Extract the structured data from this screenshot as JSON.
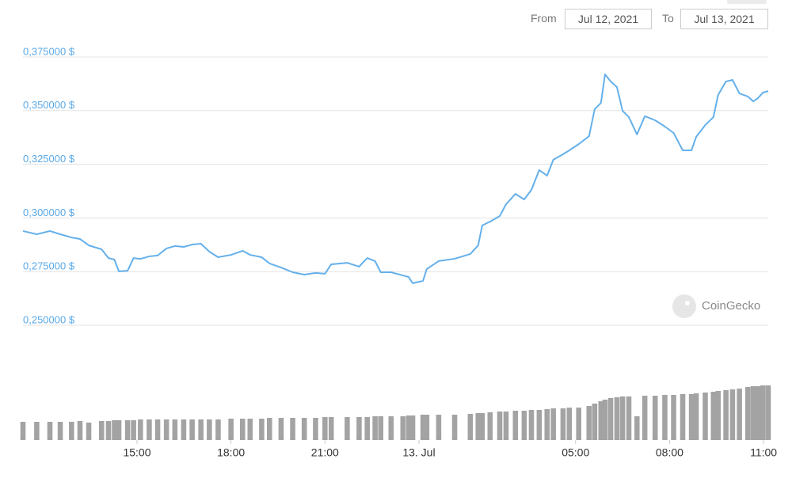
{
  "controls": {
    "from_label": "From",
    "from_value": "Jul 12, 2021",
    "to_label": "To",
    "to_value": "Jul 13, 2021"
  },
  "watermark": "CoinGecko",
  "chart_data": {
    "type": "line",
    "x": [
      11.36,
      11.8,
      12.22,
      12.55,
      12.91,
      13.18,
      13.46,
      13.87,
      14.09,
      14.28,
      14.42,
      14.7,
      14.89,
      15.11,
      15.39,
      15.66,
      15.94,
      16.21,
      16.49,
      16.76,
      17.04,
      17.31,
      17.59,
      18.0,
      18.37,
      18.61,
      18.98,
      19.23,
      19.6,
      19.97,
      20.34,
      20.7,
      21.0,
      21.2,
      21.71,
      22.09,
      22.35,
      22.6,
      22.78,
      23.11,
      23.49,
      23.67,
      23.8,
      24.13,
      24.25,
      24.63,
      25.14,
      25.64,
      25.89,
      26.02,
      26.27,
      26.58,
      26.78,
      27.08,
      27.36,
      27.59,
      27.84,
      28.09,
      28.29,
      28.6,
      28.8,
      29.1,
      29.43,
      29.61,
      29.81,
      29.94,
      30.12,
      30.32,
      30.5,
      30.7,
      30.96,
      31.21,
      31.54,
      31.85,
      32.13,
      32.42,
      32.7,
      32.85,
      33.14,
      33.4,
      33.55,
      33.8,
      34.01,
      34.23,
      34.5,
      34.67,
      34.82,
      34.98,
      35.15
    ],
    "values": [
      0.2939,
      0.2924,
      0.2939,
      0.2924,
      0.2909,
      0.2902,
      0.2872,
      0.2854,
      0.2813,
      0.2806,
      0.2751,
      0.2754,
      0.2813,
      0.2809,
      0.2821,
      0.2825,
      0.2858,
      0.2869,
      0.2865,
      0.2876,
      0.288,
      0.2843,
      0.2817,
      0.2828,
      0.2847,
      0.2828,
      0.2817,
      0.2788,
      0.2769,
      0.2747,
      0.2736,
      0.2744,
      0.274,
      0.2784,
      0.2791,
      0.2773,
      0.2813,
      0.2799,
      0.2747,
      0.2747,
      0.2732,
      0.2725,
      0.2696,
      0.2707,
      0.2762,
      0.2799,
      0.281,
      0.2832,
      0.2872,
      0.2965,
      0.2983,
      0.3009,
      0.3064,
      0.3112,
      0.3086,
      0.3131,
      0.3223,
      0.3197,
      0.3271,
      0.3297,
      0.3315,
      0.3344,
      0.3381,
      0.3507,
      0.3536,
      0.3669,
      0.3636,
      0.361,
      0.3499,
      0.347,
      0.3389,
      0.3474,
      0.3455,
      0.3426,
      0.3396,
      0.3315,
      0.3315,
      0.3378,
      0.3433,
      0.347,
      0.3573,
      0.3636,
      0.3643,
      0.358,
      0.3566,
      0.3543,
      0.3558,
      0.3584,
      0.3591
    ],
    "color": "#64b0eb",
    "volume": {
      "type": "bar",
      "color": "#a3a3a3",
      "values": [
        23,
        23,
        23,
        23,
        23,
        24,
        22,
        24,
        24,
        25,
        25,
        25,
        25,
        26,
        26,
        26,
        26,
        26,
        26,
        26,
        26,
        26,
        26,
        27,
        27,
        27,
        27,
        28,
        28,
        28,
        28,
        28,
        29,
        29,
        29,
        29,
        29,
        30,
        30,
        30,
        30,
        31,
        31,
        32,
        32,
        32,
        32,
        33,
        34,
        34,
        35,
        36,
        36,
        37,
        37,
        38,
        38,
        39,
        40,
        40,
        41,
        41,
        43,
        46,
        49,
        51,
        53,
        54,
        55,
        55,
        30,
        56,
        56,
        57,
        57,
        58,
        58,
        59,
        60,
        61,
        62,
        63,
        64,
        65,
        67,
        68,
        68,
        69,
        69
      ]
    },
    "xlim": [
      11.36,
      35.15
    ],
    "xticks": [
      {
        "value": 15,
        "label": "15:00"
      },
      {
        "value": 18,
        "label": "18:00"
      },
      {
        "value": 21,
        "label": "21:00"
      },
      {
        "value": 24,
        "label": "13. Jul"
      },
      {
        "value": 29,
        "label": "05:00"
      },
      {
        "value": 32,
        "label": "08:00"
      },
      {
        "value": 35,
        "label": "11:00"
      }
    ],
    "ylim": [
      0.25,
      0.375
    ],
    "yticks": [
      {
        "value": 0.25,
        "label": "0,250000 $"
      },
      {
        "value": 0.275,
        "label": "0,275000 $"
      },
      {
        "value": 0.3,
        "label": "0,300000 $"
      },
      {
        "value": 0.325,
        "label": "0,325000 $"
      },
      {
        "value": 0.35,
        "label": "0,350000 $"
      },
      {
        "value": 0.375,
        "label": "0,375000 $"
      }
    ],
    "y2lim": [
      0,
      80
    ],
    "grid": true
  }
}
